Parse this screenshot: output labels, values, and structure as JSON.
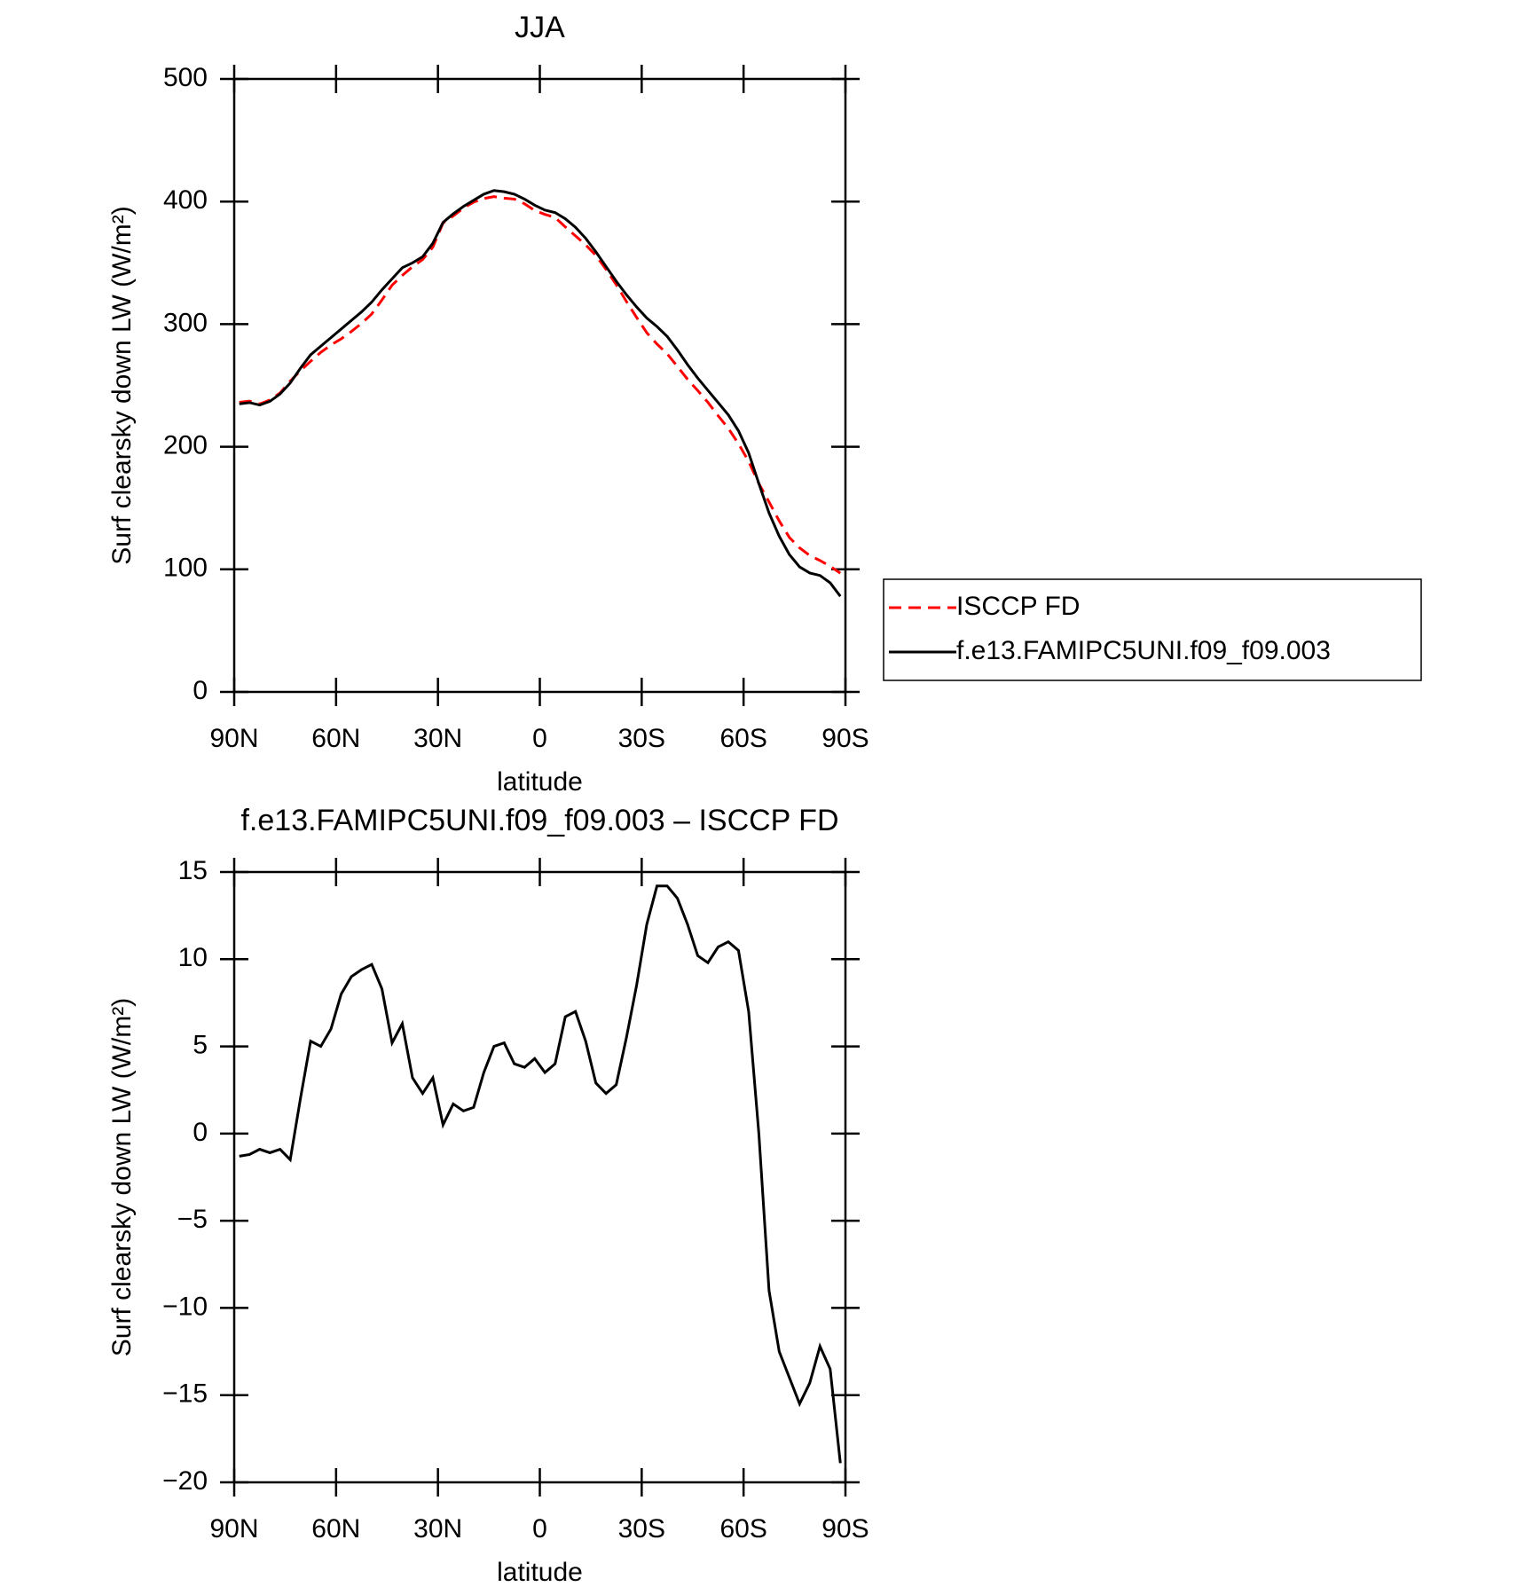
{
  "chart_data": [
    {
      "type": "line",
      "title": "JJA",
      "x_label": "latitude",
      "y_label": "Surf clearsky down LW (W/m²)",
      "xlim": [
        90,
        -90
      ],
      "xticks": [
        {
          "value": 90,
          "label": "90N"
        },
        {
          "value": 60,
          "label": "60N"
        },
        {
          "value": 30,
          "label": "30N"
        },
        0,
        {
          "value": -30,
          "label": "30S"
        },
        {
          "value": -60,
          "label": "60S"
        },
        {
          "value": -90,
          "label": "90S"
        }
      ],
      "ylim": [
        0,
        500
      ],
      "yticks": [
        0,
        100,
        200,
        300,
        400,
        500
      ],
      "legend": "right",
      "x": [
        88.5,
        85.5,
        82.5,
        79.5,
        76.5,
        73.5,
        70.5,
        67.5,
        64.5,
        61.5,
        58.5,
        55.5,
        52.5,
        49.5,
        46.5,
        43.5,
        40.5,
        37.5,
        34.5,
        31.5,
        28.5,
        25.5,
        22.5,
        19.5,
        16.5,
        13.5,
        10.5,
        7.5,
        4.5,
        1.5,
        -1.5,
        -4.5,
        -7.5,
        -10.5,
        -13.5,
        -16.5,
        -19.5,
        -22.5,
        -25.5,
        -28.5,
        -31.5,
        -34.5,
        -37.5,
        -40.5,
        -43.5,
        -46.5,
        -49.5,
        -52.5,
        -55.5,
        -58.5,
        -61.5,
        -64.5,
        -67.5,
        -70.5,
        -73.5,
        -76.5,
        -79.5,
        -82.5,
        -85.5,
        -88.5
      ],
      "series": [
        {
          "name": "ISCCP FD",
          "color": "#ff0000",
          "dashed": true,
          "values": [
            236.3,
            237.2,
            234.9,
            238.1,
            243.9,
            253.5,
            262,
            269.7,
            277,
            283,
            288,
            294,
            300.6,
            308.3,
            319.7,
            331.8,
            339.7,
            346.8,
            352.7,
            362.8,
            382.5,
            388.3,
            394.7,
            399.5,
            402.5,
            404,
            402.8,
            402,
            398.2,
            392.7,
            389.5,
            387,
            379.3,
            372,
            364.7,
            356.1,
            344.7,
            332.2,
            318.5,
            305.5,
            293,
            283.8,
            275.8,
            265.5,
            255,
            245.8,
            236.2,
            225.3,
            215,
            202.5,
            188,
            170,
            155,
            139.5,
            126,
            117.5,
            111.3,
            107.2,
            102.5,
            96.9
          ]
        },
        {
          "name": "f.e13.FAMIPC5UNI.f09_f09.003",
          "color": "#000000",
          "dashed": false,
          "values": [
            235,
            236,
            234,
            237,
            243,
            252,
            264,
            275,
            282,
            289,
            296,
            303,
            310,
            318,
            328,
            337,
            346,
            350,
            355,
            366,
            383,
            390,
            396,
            401,
            406,
            409,
            408,
            406,
            402,
            397,
            393,
            391,
            386,
            379,
            370,
            359,
            347,
            335,
            324,
            314,
            305,
            298,
            290,
            279,
            267,
            256,
            246,
            236,
            226,
            213,
            195,
            170,
            146,
            127,
            112,
            102,
            97,
            95,
            89,
            78
          ]
        }
      ]
    },
    {
      "type": "line",
      "title": "f.e13.FAMIPC5UNI.f09_f09.003 – ISCCP FD",
      "x_label": "latitude",
      "y_label": "Surf clearsky down LW (W/m²)",
      "xlim": [
        90,
        -90
      ],
      "xticks": [
        {
          "value": 90,
          "label": "90N"
        },
        {
          "value": 60,
          "label": "60N"
        },
        {
          "value": 30,
          "label": "30N"
        },
        0,
        {
          "value": -30,
          "label": "30S"
        },
        {
          "value": -60,
          "label": "60S"
        },
        {
          "value": -90,
          "label": "90S"
        }
      ],
      "ylim": [
        -20,
        15
      ],
      "yticks": [
        {
          "value": -20,
          "label": "−20"
        },
        {
          "value": -15,
          "label": "−15"
        },
        {
          "value": -10,
          "label": "−10"
        },
        {
          "value": -5,
          "label": "−5"
        },
        0,
        5,
        10,
        15
      ],
      "x": [
        88.5,
        85.5,
        82.5,
        79.5,
        76.5,
        73.5,
        70.5,
        67.5,
        64.5,
        61.5,
        58.5,
        55.5,
        52.5,
        49.5,
        46.5,
        43.5,
        40.5,
        37.5,
        34.5,
        31.5,
        28.5,
        25.5,
        22.5,
        19.5,
        16.5,
        13.5,
        10.5,
        7.5,
        4.5,
        1.5,
        -1.5,
        -4.5,
        -7.5,
        -10.5,
        -13.5,
        -16.5,
        -19.5,
        -22.5,
        -25.5,
        -28.5,
        -31.5,
        -34.5,
        -37.5,
        -40.5,
        -43.5,
        -46.5,
        -49.5,
        -52.5,
        -55.5,
        -58.5,
        -61.5,
        -64.5,
        -67.5,
        -70.5,
        -73.5,
        -76.5,
        -79.5,
        -82.5,
        -85.5,
        -88.5
      ],
      "series": [
        {
          "color": "#000000",
          "dashed": false,
          "values": [
            -1.3,
            -1.2,
            -0.9,
            -1.1,
            -0.9,
            -1.5,
            2.0,
            5.3,
            5.0,
            6.0,
            8.0,
            9.0,
            9.4,
            9.7,
            8.3,
            5.2,
            6.3,
            3.2,
            2.3,
            3.2,
            0.5,
            1.7,
            1.3,
            1.5,
            3.5,
            5.0,
            5.2,
            4.0,
            3.8,
            4.3,
            3.5,
            4.0,
            6.7,
            7.0,
            5.3,
            2.9,
            2.3,
            2.8,
            5.5,
            8.5,
            12.0,
            14.2,
            14.2,
            13.5,
            12.0,
            10.2,
            9.8,
            10.7,
            11.0,
            10.5,
            7.0,
            0,
            -9,
            -12.5,
            -14,
            -15.5,
            -14.3,
            -12.2,
            -13.5,
            -18.9
          ]
        }
      ]
    }
  ]
}
